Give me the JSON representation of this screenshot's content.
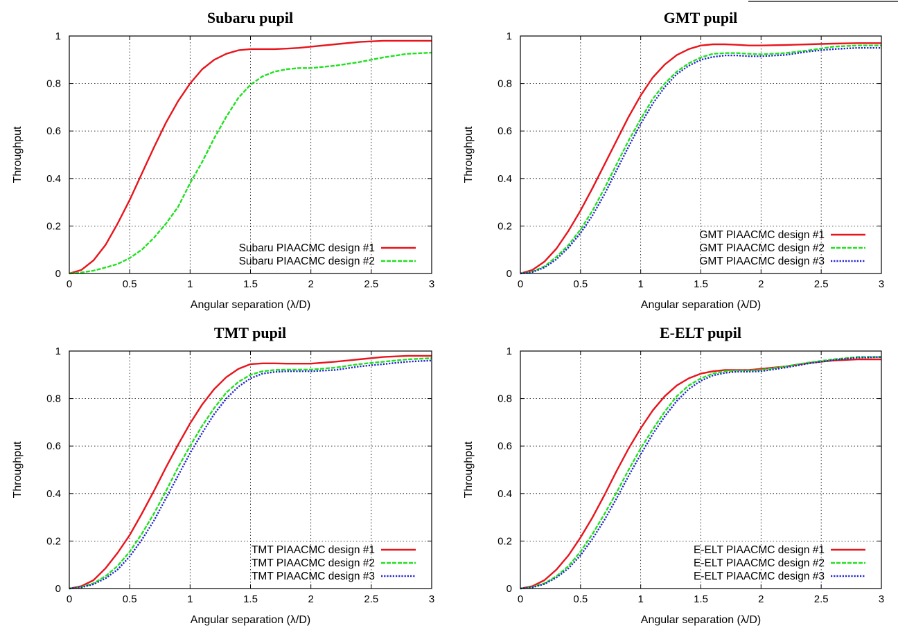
{
  "colors": {
    "design1": "#e8141c",
    "design2": "#20e020",
    "design3": "#2020d0"
  },
  "chart_data": [
    {
      "type": "line",
      "title": "Subaru pupil",
      "xlabel": "Angular separation (λ/D)",
      "ylabel": "Throughput",
      "xlim": [
        0,
        3
      ],
      "ylim": [
        0,
        1
      ],
      "xticks": [
        "0",
        "0.5",
        "1",
        "1.5",
        "2",
        "2.5",
        "3"
      ],
      "yticks": [
        "0",
        "0.2",
        "0.4",
        "0.6",
        "0.8",
        "1"
      ],
      "grid": true,
      "legend_position": "bottom-right",
      "x": [
        0,
        0.1,
        0.2,
        0.3,
        0.4,
        0.5,
        0.6,
        0.7,
        0.8,
        0.9,
        1.0,
        1.1,
        1.2,
        1.3,
        1.4,
        1.5,
        1.6,
        1.7,
        1.8,
        1.9,
        2.0,
        2.2,
        2.4,
        2.6,
        2.8,
        3.0
      ],
      "series": [
        {
          "name": "Subaru PIAACMC design #1",
          "style": "solid",
          "color_key": "design1",
          "values": [
            0.0,
            0.015,
            0.055,
            0.12,
            0.21,
            0.31,
            0.42,
            0.53,
            0.635,
            0.725,
            0.8,
            0.86,
            0.9,
            0.925,
            0.94,
            0.945,
            0.945,
            0.945,
            0.947,
            0.95,
            0.955,
            0.965,
            0.975,
            0.98,
            0.98,
            0.98
          ]
        },
        {
          "name": "Subaru PIAACMC design #2",
          "style": "dashed",
          "color_key": "design2",
          "values": [
            0.0,
            0.004,
            0.012,
            0.025,
            0.04,
            0.065,
            0.1,
            0.15,
            0.21,
            0.28,
            0.38,
            0.47,
            0.57,
            0.66,
            0.74,
            0.795,
            0.83,
            0.85,
            0.86,
            0.865,
            0.865,
            0.875,
            0.89,
            0.91,
            0.925,
            0.93
          ]
        }
      ]
    },
    {
      "type": "line",
      "title": "GMT pupil",
      "xlabel": "Angular separation (λ/D)",
      "ylabel": "Throughput",
      "xlim": [
        0,
        3
      ],
      "ylim": [
        0,
        1
      ],
      "xticks": [
        "0",
        "0.5",
        "1",
        "1.5",
        "2",
        "2.5",
        "3"
      ],
      "yticks": [
        "0",
        "0.2",
        "0.4",
        "0.6",
        "0.8",
        "1"
      ],
      "grid": true,
      "legend_position": "bottom-right",
      "x": [
        0,
        0.1,
        0.2,
        0.3,
        0.4,
        0.5,
        0.6,
        0.7,
        0.8,
        0.9,
        1.0,
        1.1,
        1.2,
        1.3,
        1.4,
        1.5,
        1.6,
        1.7,
        1.8,
        1.9,
        2.0,
        2.2,
        2.4,
        2.6,
        2.8,
        3.0
      ],
      "series": [
        {
          "name": "GMT PIAACMC design #1",
          "style": "solid",
          "color_key": "design1",
          "values": [
            0.0,
            0.015,
            0.05,
            0.105,
            0.18,
            0.265,
            0.36,
            0.46,
            0.56,
            0.66,
            0.75,
            0.825,
            0.88,
            0.92,
            0.945,
            0.96,
            0.965,
            0.965,
            0.963,
            0.96,
            0.96,
            0.962,
            0.965,
            0.968,
            0.97,
            0.97
          ]
        },
        {
          "name": "GMT PIAACMC design #2",
          "style": "dashed",
          "color_key": "design2",
          "values": [
            0.0,
            0.008,
            0.03,
            0.07,
            0.12,
            0.185,
            0.265,
            0.36,
            0.46,
            0.56,
            0.65,
            0.735,
            0.8,
            0.85,
            0.885,
            0.91,
            0.925,
            0.928,
            0.928,
            0.925,
            0.923,
            0.928,
            0.94,
            0.955,
            0.96,
            0.96
          ]
        },
        {
          "name": "GMT PIAACMC design #3",
          "style": "dotted",
          "color_key": "design3",
          "values": [
            0.0,
            0.006,
            0.025,
            0.06,
            0.11,
            0.17,
            0.245,
            0.335,
            0.435,
            0.535,
            0.63,
            0.715,
            0.785,
            0.84,
            0.875,
            0.9,
            0.912,
            0.918,
            0.918,
            0.915,
            0.915,
            0.92,
            0.935,
            0.945,
            0.95,
            0.95
          ]
        }
      ]
    },
    {
      "type": "line",
      "title": "TMT pupil",
      "xlabel": "Angular separation (λ/D)",
      "ylabel": "Throughput",
      "xlim": [
        0,
        3
      ],
      "ylim": [
        0,
        1
      ],
      "xticks": [
        "0",
        "0.5",
        "1",
        "1.5",
        "2",
        "2.5",
        "3"
      ],
      "yticks": [
        "0",
        "0.2",
        "0.4",
        "0.6",
        "0.8",
        "1"
      ],
      "grid": true,
      "legend_position": "bottom-right",
      "x": [
        0,
        0.1,
        0.2,
        0.3,
        0.4,
        0.5,
        0.6,
        0.7,
        0.8,
        0.9,
        1.0,
        1.1,
        1.2,
        1.3,
        1.4,
        1.5,
        1.6,
        1.7,
        1.8,
        1.9,
        2.0,
        2.2,
        2.4,
        2.6,
        2.8,
        3.0
      ],
      "series": [
        {
          "name": "TMT PIAACMC design #1",
          "style": "solid",
          "color_key": "design1",
          "values": [
            0.0,
            0.01,
            0.035,
            0.085,
            0.15,
            0.225,
            0.315,
            0.41,
            0.51,
            0.605,
            0.695,
            0.775,
            0.84,
            0.89,
            0.925,
            0.945,
            0.948,
            0.948,
            0.947,
            0.947,
            0.947,
            0.955,
            0.965,
            0.975,
            0.98,
            0.98
          ]
        },
        {
          "name": "TMT PIAACMC design #2",
          "style": "dashed",
          "color_key": "design2",
          "values": [
            0.0,
            0.006,
            0.022,
            0.052,
            0.095,
            0.155,
            0.23,
            0.315,
            0.41,
            0.51,
            0.6,
            0.685,
            0.76,
            0.825,
            0.87,
            0.9,
            0.915,
            0.92,
            0.922,
            0.922,
            0.922,
            0.93,
            0.945,
            0.955,
            0.965,
            0.97
          ]
        },
        {
          "name": "TMT PIAACMC design #3",
          "style": "dotted",
          "color_key": "design3",
          "values": [
            0.0,
            0.005,
            0.018,
            0.043,
            0.08,
            0.135,
            0.205,
            0.285,
            0.38,
            0.475,
            0.57,
            0.655,
            0.735,
            0.8,
            0.85,
            0.885,
            0.905,
            0.912,
            0.915,
            0.915,
            0.915,
            0.92,
            0.935,
            0.945,
            0.955,
            0.96
          ]
        }
      ]
    },
    {
      "type": "line",
      "title": "E-ELT pupil",
      "xlabel": "Angular separation (λ/D)",
      "ylabel": "Throughput",
      "xlim": [
        0,
        3
      ],
      "ylim": [
        0,
        1
      ],
      "xticks": [
        "0",
        "0.5",
        "1",
        "1.5",
        "2",
        "2.5",
        "3"
      ],
      "yticks": [
        "0",
        "0.2",
        "0.4",
        "0.6",
        "0.8",
        "1"
      ],
      "grid": true,
      "legend_position": "bottom-right",
      "x": [
        0,
        0.1,
        0.2,
        0.3,
        0.4,
        0.5,
        0.6,
        0.7,
        0.8,
        0.9,
        1.0,
        1.1,
        1.2,
        1.3,
        1.4,
        1.5,
        1.6,
        1.7,
        1.8,
        1.9,
        2.0,
        2.2,
        2.4,
        2.6,
        2.8,
        3.0
      ],
      "series": [
        {
          "name": "E-ELT PIAACMC design #1",
          "style": "solid",
          "color_key": "design1",
          "values": [
            0.0,
            0.01,
            0.035,
            0.08,
            0.14,
            0.215,
            0.3,
            0.395,
            0.495,
            0.59,
            0.675,
            0.75,
            0.81,
            0.855,
            0.885,
            0.905,
            0.915,
            0.92,
            0.92,
            0.92,
            0.925,
            0.935,
            0.95,
            0.96,
            0.965,
            0.965
          ]
        },
        {
          "name": "E-ELT PIAACMC design #2",
          "style": "dashed",
          "color_key": "design2",
          "values": [
            0.0,
            0.006,
            0.022,
            0.052,
            0.095,
            0.155,
            0.23,
            0.315,
            0.405,
            0.5,
            0.59,
            0.67,
            0.745,
            0.81,
            0.855,
            0.885,
            0.905,
            0.915,
            0.918,
            0.918,
            0.92,
            0.935,
            0.952,
            0.965,
            0.975,
            0.975
          ]
        },
        {
          "name": "E-ELT PIAACMC design #3",
          "style": "dotted",
          "color_key": "design3",
          "values": [
            0.0,
            0.005,
            0.019,
            0.046,
            0.085,
            0.14,
            0.21,
            0.29,
            0.38,
            0.475,
            0.565,
            0.65,
            0.725,
            0.79,
            0.84,
            0.875,
            0.897,
            0.908,
            0.913,
            0.913,
            0.915,
            0.93,
            0.948,
            0.962,
            0.972,
            0.975
          ]
        }
      ]
    }
  ]
}
